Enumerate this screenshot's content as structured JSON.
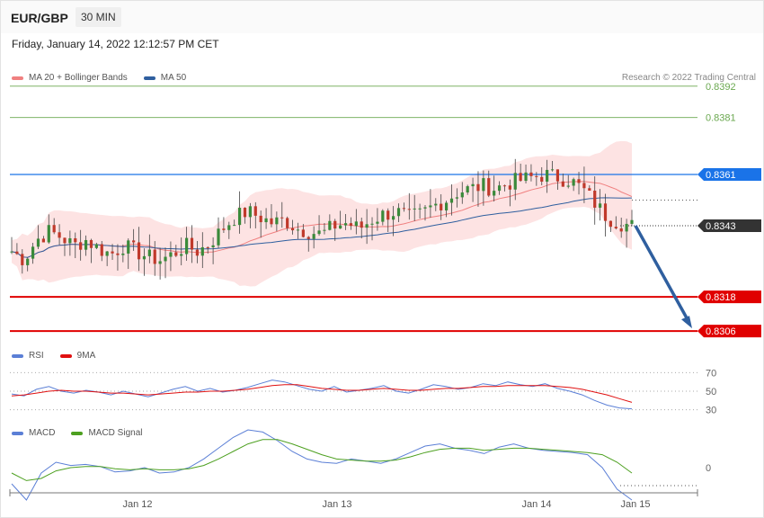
{
  "header": {
    "pair": "EUR/GBP",
    "timeframe": "30 MIN"
  },
  "date": "Friday, January 14, 2022 12:12:57 PM CET",
  "credit": "Research © 2022 Trading Central",
  "legends": {
    "price": [
      {
        "label": "MA 20 + Bollinger Bands",
        "color": "#f08080"
      },
      {
        "label": "MA 50",
        "color": "#2f5f9f"
      }
    ],
    "rsi": [
      {
        "label": "RSI",
        "color": "#5b7fd6"
      },
      {
        "label": "9MA",
        "color": "#e01010"
      }
    ],
    "macd": [
      {
        "label": "MACD",
        "color": "#5b7fd6"
      },
      {
        "label": "MACD Signal",
        "color": "#4da020"
      }
    ]
  },
  "chart_data": [
    {
      "type": "candlestick",
      "series": "price",
      "ylim": [
        0.8301,
        0.8397
      ],
      "levels": [
        {
          "value": "0.8392",
          "kind": "target",
          "color": "#6aa84f"
        },
        {
          "value": "0.8381",
          "kind": "target",
          "color": "#6aa84f"
        },
        {
          "value": "0.8361",
          "kind": "resistance",
          "color": "#1a73e8"
        },
        {
          "value": "0.8343",
          "kind": "last",
          "color": "#333333"
        },
        {
          "value": "0.8318",
          "kind": "support",
          "color": "#e00000"
        },
        {
          "value": "0.8306",
          "kind": "support",
          "color": "#e00000"
        }
      ],
      "close_path": [
        0.8334,
        0.8331,
        0.8338,
        0.8341,
        0.8339,
        0.8336,
        0.8338,
        0.8335,
        0.8333,
        0.8336,
        0.8334,
        0.8332,
        0.8331,
        0.8333,
        0.8336,
        0.8334,
        0.8337,
        0.8342,
        0.8346,
        0.8348,
        0.8346,
        0.8344,
        0.8345,
        0.8342,
        0.8341,
        0.834,
        0.8343,
        0.8344,
        0.8342,
        0.8345,
        0.8347,
        0.8348,
        0.8346,
        0.8347,
        0.835,
        0.8352,
        0.8355,
        0.8356,
        0.8357,
        0.8356,
        0.8358,
        0.8359,
        0.836,
        0.8361,
        0.836,
        0.8359,
        0.8356,
        0.8351,
        0.8346,
        0.8344,
        0.8343
      ],
      "arrow": {
        "from": 0.8343,
        "to": 0.8306
      }
    },
    {
      "type": "line",
      "series": "RSI",
      "ylim": [
        20,
        80
      ],
      "ticks": [
        "70",
        "50",
        "30"
      ],
      "rsi": [
        47,
        45,
        52,
        55,
        50,
        48,
        51,
        49,
        46,
        50,
        47,
        44,
        48,
        52,
        55,
        50,
        53,
        49,
        51,
        54,
        58,
        62,
        60,
        56,
        52,
        50,
        55,
        49,
        51,
        53,
        56,
        50,
        48,
        52,
        57,
        55,
        52,
        54,
        58,
        56,
        60,
        57,
        55,
        58,
        53,
        50,
        46,
        40,
        35,
        32,
        31
      ],
      "ma9": [
        45,
        46,
        48,
        50,
        51,
        50,
        50,
        49,
        48,
        48,
        47,
        46,
        47,
        48,
        49,
        49,
        50,
        50,
        51,
        52,
        54,
        56,
        57,
        57,
        55,
        53,
        52,
        51,
        51,
        52,
        53,
        52,
        51,
        51,
        52,
        53,
        53,
        54,
        55,
        55,
        56,
        56,
        56,
        56,
        55,
        54,
        52,
        49,
        46,
        42,
        38
      ]
    },
    {
      "type": "line",
      "series": "MACD",
      "ticks": [
        "0"
      ],
      "macd": [
        -0.00015,
        -0.0003,
        -5e-05,
        5e-05,
        2e-05,
        3e-05,
        1e-05,
        -4e-05,
        -3e-05,
        0.0,
        -5e-05,
        -4e-05,
        0.0,
        8e-05,
        0.00018,
        0.00028,
        0.00035,
        0.00033,
        0.00025,
        0.00015,
        8e-05,
        5e-05,
        4e-05,
        8e-05,
        6e-05,
        4e-05,
        8e-05,
        0.00014,
        0.0002,
        0.00022,
        0.00018,
        0.00016,
        0.00013,
        0.00019,
        0.00022,
        0.00018,
        0.00016,
        0.00015,
        0.00014,
        0.00012,
        0.0,
        -0.0002,
        -0.0003
      ],
      "signal": [
        -5e-05,
        -0.00012,
        -0.0001,
        -3e-05,
        0.0,
        1e-05,
        1e-05,
        -1e-05,
        -2e-05,
        -1e-05,
        -2e-05,
        -2e-05,
        -1e-05,
        2e-05,
        8e-05,
        0.00015,
        0.00022,
        0.00026,
        0.00026,
        0.00022,
        0.00017,
        0.00012,
        8e-05,
        7e-05,
        6e-05,
        6e-05,
        7e-05,
        0.0001,
        0.00014,
        0.00017,
        0.00018,
        0.00018,
        0.00016,
        0.00017,
        0.00018,
        0.00018,
        0.00017,
        0.00016,
        0.00015,
        0.00014,
        0.00012,
        5e-05,
        -5e-05
      ]
    }
  ],
  "xaxis": {
    "labels": [
      "Jan 12",
      "Jan 13",
      "Jan 14",
      "Jan 15"
    ]
  }
}
